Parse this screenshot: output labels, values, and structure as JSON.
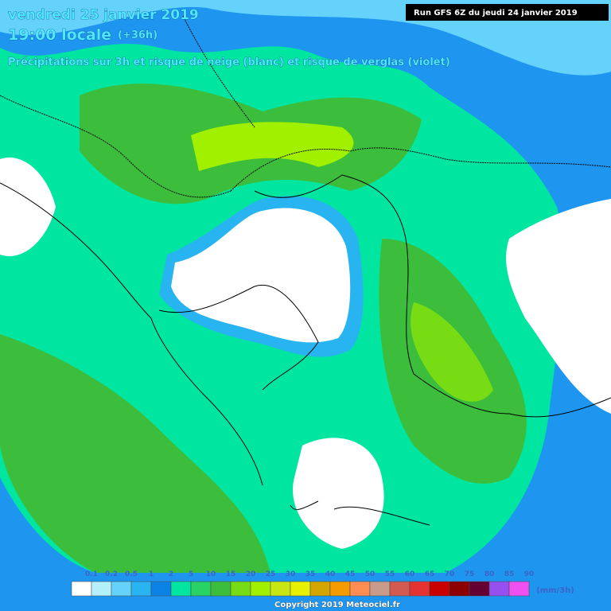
{
  "header": {
    "date": "vendredi 25 janvier 2019",
    "time": "19:00 locale",
    "lead": "(+36h)",
    "subtitle": "Précipitations sur 3h et risque de neige (blanc) et risque de verglas (violet)",
    "run": "Run GFS 6Z du jeudi 24 janvier 2019"
  },
  "legend": {
    "labels": [
      "0.1",
      "0.2",
      "0.5",
      "1",
      "2",
      "5",
      "10",
      "15",
      "20",
      "25",
      "30",
      "35",
      "40",
      "45",
      "50",
      "55",
      "60",
      "65",
      "70",
      "75",
      "80",
      "85",
      "90"
    ],
    "colors": [
      "#ffffff",
      "#b4f0fa",
      "#64d2fa",
      "#28b4f0",
      "#0a82e6",
      "#00e6a0",
      "#28d264",
      "#3cbe3c",
      "#78dc14",
      "#a0f000",
      "#c8e614",
      "#e6f000",
      "#d2a500",
      "#f59b00",
      "#ff8c50",
      "#c89b8c",
      "#d25a50",
      "#e63232",
      "#c80000",
      "#8c0000",
      "#640032",
      "#9650f0",
      "#f050f0"
    ],
    "unit": "(mm/3h)"
  },
  "footer": {
    "copyright": "Copyright 2019 Meteociel.fr"
  }
}
